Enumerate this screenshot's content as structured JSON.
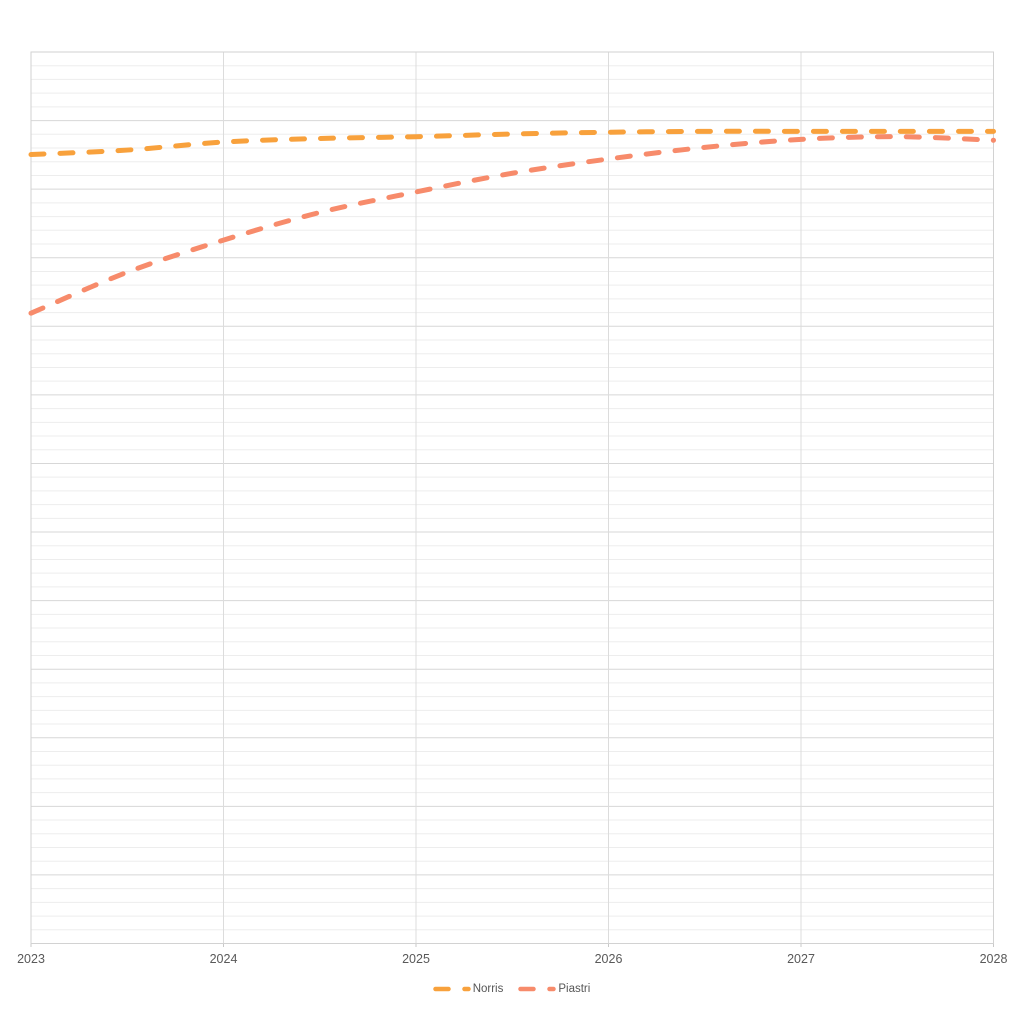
{
  "chart_data": {
    "type": "line",
    "title": "",
    "x_axis": {
      "tick_labels": [
        "2023",
        "2024",
        "2025",
        "2026",
        "2027",
        "2028"
      ],
      "min": 2023,
      "max": 2028
    },
    "y_axis": {
      "tick_labels": [],
      "note": "no y-axis labels visible; series values are normalized 0-1 fractions of plot height",
      "ylim": [
        0,
        1
      ]
    },
    "x": [
      2023,
      2023.5,
      2024,
      2024.5,
      2025,
      2025.5,
      2026,
      2026.5,
      2027,
      2027.5,
      2028
    ],
    "series": [
      {
        "name": "Norris",
        "color": "#F8A13C",
        "line_style": "dashed",
        "values": [
          0.885,
          0.89,
          0.899,
          0.903,
          0.905,
          0.908,
          0.91,
          0.911,
          0.911,
          0.911,
          0.911
        ]
      },
      {
        "name": "Piastri",
        "color": "#F78B6B",
        "line_style": "dashed",
        "values": [
          0.707,
          0.753,
          0.789,
          0.82,
          0.843,
          0.864,
          0.88,
          0.893,
          0.902,
          0.905,
          0.901
        ]
      }
    ],
    "grid": {
      "horizontal_major_intervals": 13,
      "minor_per_major": 5,
      "vertical_gridlines_at_ticks": true
    },
    "legend": {
      "position": "bottom-center",
      "entries": [
        "Norris",
        "Piastri"
      ]
    }
  },
  "colors": {
    "background": "#FFFFFF",
    "minor_grid": "#EDEDED",
    "major_grid": "#D7D7D7",
    "vertical_grid": "#DCDCDC",
    "plot_border": "#D2D2D2",
    "tick_mark": "#C9C9C9",
    "tick_text": "#595959",
    "legend_text": "#565656",
    "norris": "#F8A13C",
    "piastri": "#F78B6B"
  }
}
